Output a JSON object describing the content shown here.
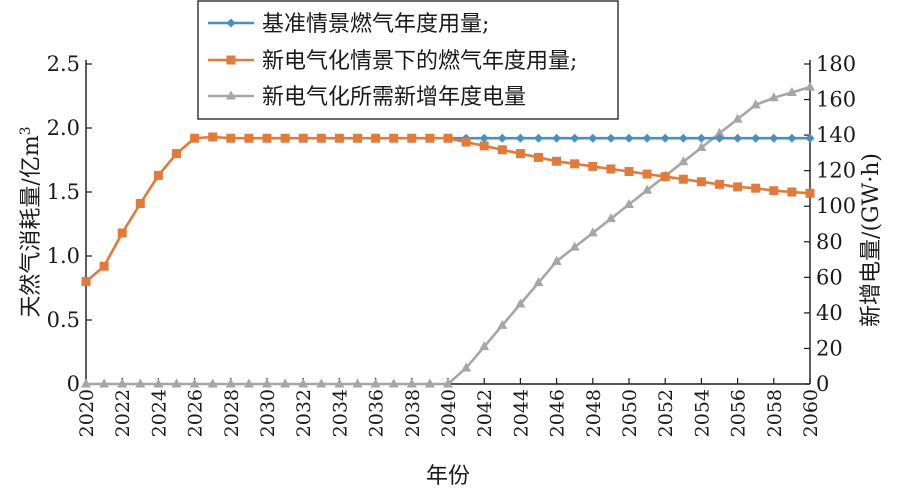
{
  "chart_data": {
    "type": "line",
    "xlabel": "年份",
    "ylabel_left": "天然气消耗量/亿m",
    "ylabel_left_sup": "3",
    "ylabel_right": "新增电量/(GW·h)",
    "xlim": [
      2020,
      2060
    ],
    "ylim_left": [
      0,
      2.5
    ],
    "ylim_right": [
      0,
      180
    ],
    "x_ticks": [
      "2020",
      "2022",
      "2024",
      "2026",
      "2028",
      "2030",
      "2032",
      "2034",
      "2036",
      "2038",
      "2040",
      "2042",
      "2044",
      "2046",
      "2048",
      "2050",
      "2052",
      "2054",
      "2056",
      "2058",
      "2060"
    ],
    "y_left_ticks": [
      "0",
      "0.5",
      "1.0",
      "1.5",
      "2.0",
      "2.5"
    ],
    "y_right_ticks": [
      "0",
      "20",
      "40",
      "60",
      "80",
      "100",
      "120",
      "140",
      "160",
      "180"
    ],
    "grid": false,
    "legend_position": "top-center",
    "x": [
      2020,
      2021,
      2022,
      2023,
      2024,
      2025,
      2026,
      2027,
      2028,
      2029,
      2030,
      2031,
      2032,
      2033,
      2034,
      2035,
      2036,
      2037,
      2038,
      2039,
      2040,
      2041,
      2042,
      2043,
      2044,
      2045,
      2046,
      2047,
      2048,
      2049,
      2050,
      2051,
      2052,
      2053,
      2054,
      2055,
      2056,
      2057,
      2058,
      2059,
      2060
    ],
    "series": [
      {
        "name": "基准情景燃气年度用量;",
        "axis": "left",
        "color": "#4a8fc0",
        "marker": "diamond",
        "values": [
          null,
          null,
          null,
          null,
          null,
          null,
          null,
          null,
          null,
          null,
          null,
          null,
          null,
          null,
          null,
          null,
          null,
          null,
          null,
          null,
          1.92,
          1.92,
          1.92,
          1.92,
          1.92,
          1.92,
          1.92,
          1.92,
          1.92,
          1.92,
          1.92,
          1.92,
          1.92,
          1.92,
          1.92,
          1.92,
          1.92,
          1.92,
          1.92,
          1.92,
          1.92
        ]
      },
      {
        "name": "新电气化情景下的燃气年度用量;",
        "axis": "left",
        "color": "#e07b3c",
        "marker": "square",
        "values": [
          0.8,
          0.92,
          1.18,
          1.41,
          1.63,
          1.8,
          1.92,
          1.93,
          1.92,
          1.92,
          1.92,
          1.92,
          1.92,
          1.92,
          1.92,
          1.92,
          1.92,
          1.92,
          1.92,
          1.92,
          1.92,
          1.89,
          1.86,
          1.83,
          1.8,
          1.77,
          1.74,
          1.72,
          1.7,
          1.68,
          1.66,
          1.64,
          1.62,
          1.6,
          1.58,
          1.56,
          1.54,
          1.53,
          1.51,
          1.5,
          1.49
        ]
      },
      {
        "name": "新电气化所需新增年度电量",
        "axis": "right",
        "color": "#a6a6a6",
        "marker": "triangle",
        "values": [
          0,
          0,
          0,
          0,
          0,
          0,
          0,
          0,
          0,
          0,
          0,
          0,
          0,
          0,
          0,
          0,
          0,
          0,
          0,
          0,
          0,
          9,
          21,
          33,
          45,
          57,
          69,
          77,
          85,
          93,
          101,
          109,
          117,
          125,
          133,
          141,
          149,
          157,
          161,
          164,
          167
        ]
      }
    ]
  }
}
